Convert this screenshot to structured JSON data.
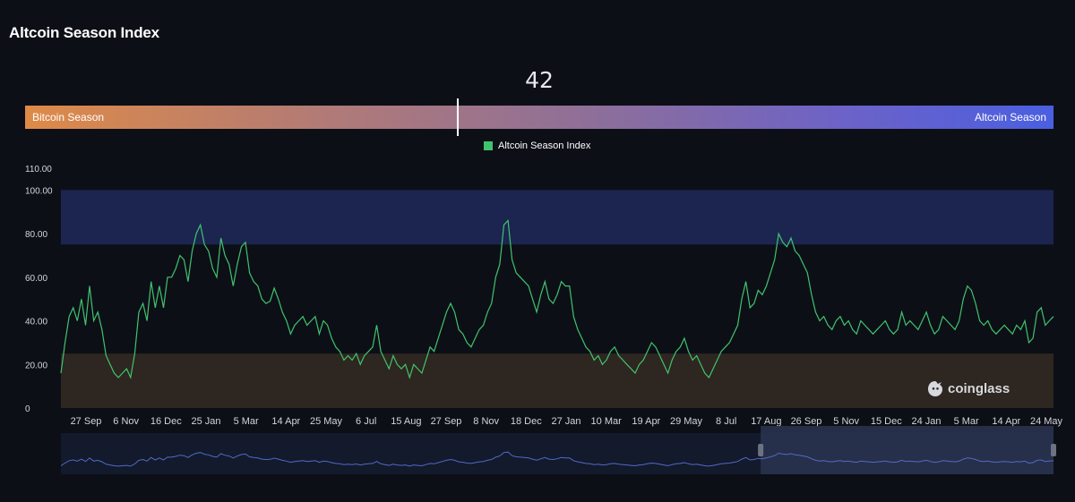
{
  "title": "Altcoin Season Index",
  "gauge": {
    "value": "42",
    "value_fraction": 0.42,
    "left_label": "Bitcoin Season",
    "right_label": "Altcoin Season"
  },
  "legend": {
    "label": "Altcoin Season Index",
    "color": "#3fc46d"
  },
  "watermark": "coinglass",
  "chart_data": {
    "type": "line",
    "series": [
      {
        "name": "Altcoin Season Index",
        "color": "#3fc46d",
        "values": [
          16,
          30,
          42,
          46,
          40,
          50,
          38,
          56,
          40,
          44,
          36,
          24,
          20,
          16,
          14,
          16,
          18,
          14,
          25,
          44,
          48,
          40,
          58,
          46,
          56,
          46,
          60,
          60,
          64,
          70,
          68,
          58,
          72,
          80,
          84,
          75,
          72,
          64,
          60,
          78,
          70,
          66,
          56,
          66,
          74,
          76,
          62,
          58,
          56,
          50,
          48,
          49,
          55,
          50,
          44,
          40,
          34,
          38,
          40,
          42,
          38,
          40,
          42,
          34,
          40,
          38,
          32,
          28,
          26,
          22,
          24,
          22,
          25,
          20,
          24,
          26,
          28,
          38,
          26,
          22,
          18,
          24,
          20,
          18,
          20,
          14,
          20,
          18,
          16,
          22,
          28,
          26,
          32,
          38,
          44,
          48,
          44,
          36,
          34,
          30,
          28,
          32,
          36,
          38,
          44,
          48,
          60,
          66,
          84,
          86,
          68,
          62,
          60,
          58,
          56,
          50,
          44,
          52,
          58,
          50,
          48,
          52,
          58,
          56,
          56,
          42,
          36,
          32,
          28,
          26,
          22,
          24,
          20,
          22,
          26,
          28,
          24,
          22,
          20,
          18,
          16,
          20,
          22,
          26,
          30,
          28,
          24,
          20,
          16,
          22,
          26,
          28,
          32,
          26,
          22,
          24,
          20,
          16,
          14,
          18,
          22,
          26,
          28,
          30,
          34,
          38,
          50,
          58,
          46,
          48,
          54,
          52,
          56,
          62,
          68,
          80,
          76,
          74,
          78,
          72,
          70,
          66,
          62,
          52,
          44,
          40,
          42,
          38,
          36,
          40,
          42,
          38,
          40,
          36,
          34,
          40,
          38,
          36,
          34,
          36,
          38,
          40,
          36,
          34,
          36,
          44,
          38,
          40,
          38,
          36,
          40,
          44,
          38,
          34,
          36,
          42,
          40,
          38,
          36,
          40,
          50,
          56,
          54,
          48,
          40,
          38,
          40,
          36,
          34,
          36,
          38,
          36,
          34,
          38,
          36,
          40,
          30,
          32,
          44,
          46,
          38,
          40,
          42
        ]
      }
    ],
    "x_tick_labels": [
      "27 Sep",
      "6 Nov",
      "16 Dec",
      "25 Jan",
      "5 Mar",
      "14 Apr",
      "25 May",
      "6 Jul",
      "15 Aug",
      "27 Sep",
      "8 Nov",
      "18 Dec",
      "27 Jan",
      "10 Mar",
      "19 Apr",
      "29 May",
      "8 Jul",
      "17 Aug",
      "26 Sep",
      "5 Nov",
      "15 Dec",
      "24 Jan",
      "5 Mar",
      "14 Apr",
      "24 May"
    ],
    "y_tick_labels": [
      "0",
      "20.00",
      "40.00",
      "60.00",
      "80.00",
      "100.00",
      "110.00"
    ],
    "y_ticks": [
      0,
      20,
      40,
      60,
      80,
      100,
      110
    ],
    "ylim": [
      0,
      110
    ],
    "bands": [
      {
        "name": "altcoin-season-band",
        "from": 75,
        "to": 100,
        "color": "#1b2550"
      },
      {
        "name": "bitcoin-season-band",
        "from": 0,
        "to": 25,
        "color": "#2e2620"
      }
    ],
    "grid": false,
    "legend_position": "top-center",
    "navigator": {
      "selected_from_fraction": 0.705,
      "selected_to_fraction": 1.0
    }
  }
}
